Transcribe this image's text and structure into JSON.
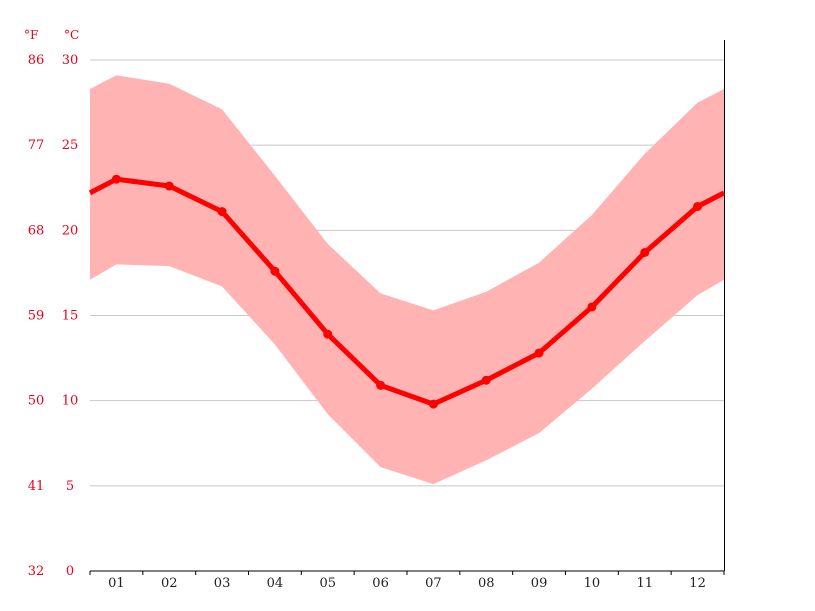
{
  "chart_data": {
    "type": "line",
    "units": {
      "fahrenheit": "°F",
      "celsius": "°C"
    },
    "categories": [
      "01",
      "02",
      "03",
      "04",
      "05",
      "06",
      "07",
      "08",
      "09",
      "10",
      "11",
      "12"
    ],
    "y_ticks_celsius": [
      "0",
      "5",
      "10",
      "15",
      "20",
      "25",
      "30"
    ],
    "y_ticks_fahrenheit": [
      "32",
      "41",
      "50",
      "59",
      "68",
      "77",
      "86"
    ],
    "ylim": [
      0,
      30
    ],
    "grid": true,
    "series": [
      {
        "values": [
          23.0,
          22.6,
          21.1,
          17.6,
          13.9,
          10.9,
          9.8,
          11.2,
          12.8,
          15.5,
          18.7,
          21.4
        ]
      }
    ],
    "range_band": {
      "max": [
        29.1,
        28.6,
        27.1,
        23.2,
        19.2,
        16.3,
        15.3,
        16.4,
        18.1,
        20.9,
        24.5,
        27.5
      ],
      "min": [
        18.0,
        17.9,
        16.7,
        13.3,
        9.2,
        6.1,
        5.1,
        6.5,
        8.1,
        10.7,
        13.5,
        16.2
      ]
    },
    "colors": {
      "line": "#ff0000",
      "band": "#ffb3b3",
      "grid": "#c8c8c8",
      "labels": "#e8001c",
      "axis": "#000000"
    }
  }
}
